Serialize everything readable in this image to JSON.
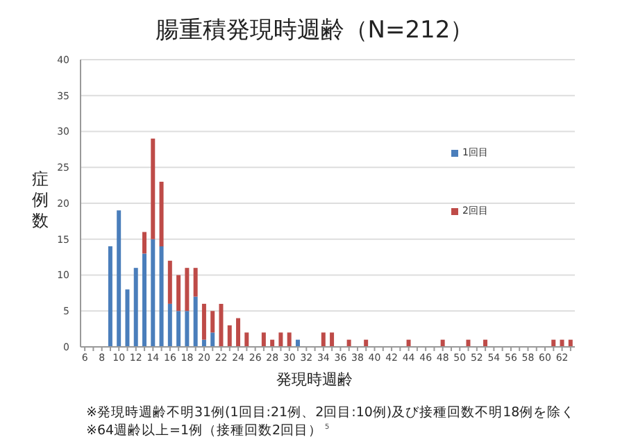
{
  "chart_data": {
    "type": "bar",
    "title": "腸重積発現時週齢（N=212）",
    "xlabel": "発現時週齢",
    "ylabel": "症例数",
    "categories": [
      "6",
      null,
      "8",
      null,
      "10",
      null,
      "12",
      null,
      "14",
      null,
      "16",
      null,
      "18",
      null,
      "20",
      null,
      "22",
      null,
      "24",
      null,
      "26",
      null,
      "28",
      null,
      "30",
      null,
      "32",
      null,
      "34",
      null,
      "36",
      null,
      "38",
      null,
      "40",
      null,
      "42",
      null,
      "44",
      null,
      "46",
      null,
      "48",
      null,
      "50",
      null,
      "52",
      null,
      "54",
      null,
      "56",
      null,
      "58",
      null,
      "60",
      null,
      "62",
      null
    ],
    "series": [
      {
        "name": "1回目",
        "color": "#4a7ebb",
        "values": [
          0,
          0,
          0,
          14,
          19,
          8,
          11,
          13,
          15,
          14,
          6,
          5,
          5,
          7,
          1,
          2,
          0,
          0,
          0,
          0,
          0,
          0,
          0,
          0,
          0,
          1,
          0,
          0,
          0,
          0,
          0,
          0,
          0,
          0,
          0,
          0,
          0,
          0,
          0,
          0,
          0,
          0,
          0,
          0,
          0,
          0,
          0,
          0,
          0,
          0,
          0,
          0,
          0,
          0,
          0,
          0,
          0,
          0
        ]
      },
      {
        "name": "2回目",
        "color": "#be4b48",
        "values": [
          0,
          0,
          0,
          0,
          0,
          0,
          0,
          3,
          14,
          9,
          6,
          5,
          6,
          4,
          5,
          3,
          6,
          3,
          4,
          2,
          0,
          2,
          1,
          2,
          2,
          0,
          0,
          0,
          2,
          2,
          0,
          1,
          0,
          1,
          0,
          0,
          0,
          0,
          1,
          0,
          0,
          0,
          1,
          0,
          0,
          1,
          0,
          1,
          0,
          0,
          0,
          0,
          0,
          0,
          0,
          1,
          1,
          1
        ]
      }
    ],
    "stacked": true,
    "ylim": [
      0,
      40
    ],
    "yticks": [
      0,
      5,
      10,
      15,
      20,
      25,
      30,
      35,
      40
    ],
    "grid": "y",
    "legend": "right",
    "annotations": [
      "※発現時週齢不明31例(1回目:21例、2回目:10例)及び接種回数不明18例を除く",
      "※64週齢以上=1例（接種回数2回目）",
      "5"
    ]
  }
}
